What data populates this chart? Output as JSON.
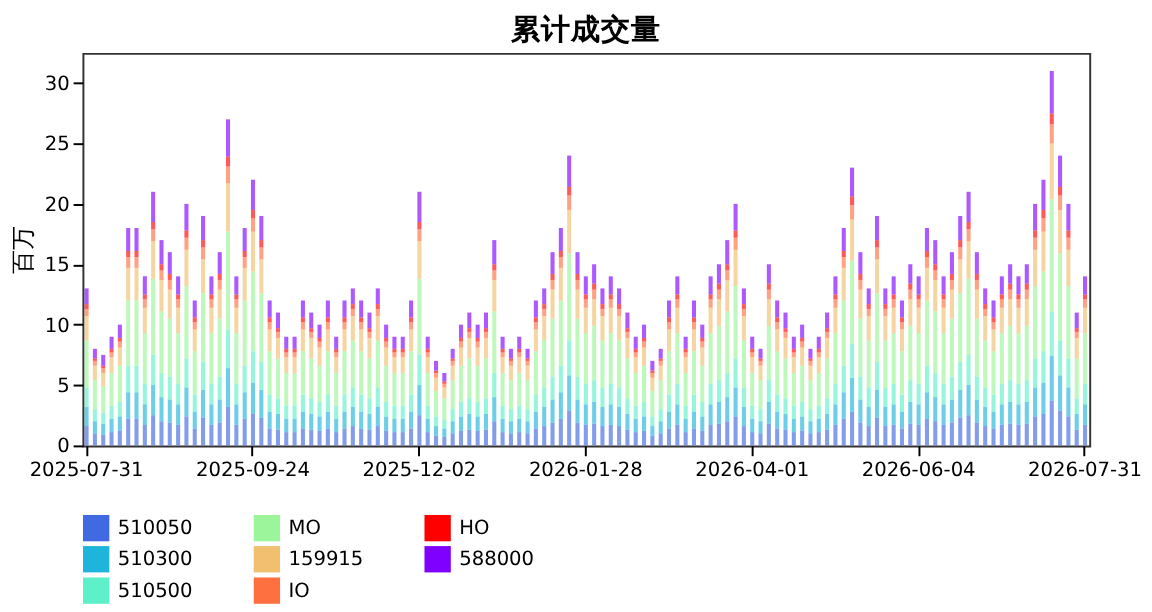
{
  "chart_data": {
    "type": "bar",
    "stacked": true,
    "title": "累计成交量",
    "ylabel": "百万",
    "categories": [
      "2025-07-31",
      null,
      null,
      null,
      null,
      null,
      null,
      null,
      null,
      null,
      null,
      null,
      null,
      null,
      null,
      null,
      null,
      null,
      null,
      null,
      "2025-09-24",
      null,
      null,
      null,
      null,
      null,
      null,
      null,
      null,
      null,
      null,
      null,
      null,
      null,
      null,
      null,
      null,
      null,
      null,
      null,
      "2025-12-02",
      null,
      null,
      null,
      null,
      null,
      null,
      null,
      null,
      null,
      null,
      null,
      null,
      null,
      null,
      null,
      null,
      null,
      null,
      null,
      "2026-01-28",
      null,
      null,
      null,
      null,
      null,
      null,
      null,
      null,
      null,
      null,
      null,
      null,
      null,
      null,
      null,
      null,
      null,
      null,
      null,
      "2026-04-01",
      null,
      null,
      null,
      null,
      null,
      null,
      null,
      null,
      null,
      null,
      null,
      null,
      null,
      null,
      null,
      null,
      null,
      null,
      null,
      "2026-06-04",
      null,
      null,
      null,
      null,
      null,
      null,
      null,
      null,
      null,
      null,
      null,
      null,
      null,
      null,
      null,
      null,
      null,
      null,
      null,
      "2026-07-31"
    ],
    "ylim": [
      0,
      32.5
    ],
    "yticks": [
      0,
      5,
      10,
      15,
      20,
      25,
      30
    ],
    "grid": false,
    "legend": "bottom",
    "series": [
      {
        "name": "510050",
        "color": "#4169e1",
        "values": [
          1.6,
          1.0,
          0.9,
          1.1,
          1.2,
          2.2,
          2.2,
          1.7,
          2.5,
          2.0,
          1.9,
          1.7,
          2.4,
          1.4,
          2.3,
          1.7,
          1.9,
          3.2,
          1.7,
          2.2,
          2.6,
          2.3,
          1.4,
          1.3,
          1.1,
          1.1,
          1.4,
          1.3,
          1.2,
          1.4,
          1.1,
          1.4,
          1.6,
          1.4,
          1.3,
          1.6,
          1.2,
          1.1,
          1.1,
          1.4,
          2.5,
          1.1,
          0.8,
          0.7,
          1.0,
          1.2,
          1.3,
          1.2,
          1.3,
          2.0,
          1.1,
          1.0,
          1.1,
          1.0,
          1.4,
          1.6,
          1.9,
          2.2,
          2.9,
          1.9,
          1.7,
          1.8,
          1.6,
          1.7,
          1.6,
          1.3,
          1.1,
          1.2,
          0.8,
          1.0,
          1.4,
          1.7,
          1.1,
          1.4,
          1.2,
          1.7,
          1.8,
          2.0,
          2.4,
          1.6,
          1.1,
          1.0,
          1.8,
          1.4,
          1.3,
          1.1,
          1.2,
          1.0,
          1.1,
          1.3,
          1.7,
          2.2,
          2.8,
          1.9,
          1.6,
          2.3,
          1.6,
          1.7,
          1.4,
          1.8,
          1.7,
          2.2,
          2.0,
          1.7,
          1.9,
          2.3,
          2.5,
          1.9,
          1.6,
          1.4,
          1.7,
          1.8,
          1.7,
          1.8,
          2.4,
          2.6,
          3.7,
          2.9,
          2.4,
          1.3,
          1.7
        ]
      },
      {
        "name": "510300",
        "color": "#1fb4dc",
        "values": [
          1.6,
          1.0,
          0.9,
          1.1,
          1.2,
          2.2,
          2.2,
          1.7,
          2.5,
          2.0,
          1.9,
          1.7,
          2.4,
          1.4,
          2.3,
          1.7,
          1.9,
          3.2,
          1.7,
          2.2,
          2.6,
          2.3,
          1.4,
          1.3,
          1.1,
          1.1,
          1.4,
          1.3,
          1.2,
          1.4,
          1.1,
          1.4,
          1.6,
          1.4,
          1.3,
          1.6,
          1.2,
          1.1,
          1.1,
          1.4,
          2.5,
          1.1,
          0.8,
          0.7,
          1.0,
          1.2,
          1.3,
          1.2,
          1.3,
          2.0,
          1.1,
          1.0,
          1.1,
          1.0,
          1.4,
          1.6,
          1.9,
          2.2,
          2.9,
          1.9,
          1.7,
          1.8,
          1.6,
          1.7,
          1.6,
          1.3,
          1.1,
          1.2,
          0.8,
          1.0,
          1.4,
          1.7,
          1.1,
          1.4,
          1.2,
          1.7,
          1.8,
          2.0,
          2.4,
          1.6,
          1.1,
          1.0,
          1.8,
          1.4,
          1.3,
          1.1,
          1.2,
          1.0,
          1.1,
          1.3,
          1.7,
          2.2,
          2.8,
          1.9,
          1.6,
          2.3,
          1.6,
          1.7,
          1.4,
          1.8,
          1.7,
          2.2,
          2.0,
          1.7,
          1.9,
          2.3,
          2.5,
          1.9,
          1.6,
          1.4,
          1.7,
          1.8,
          1.7,
          1.8,
          2.4,
          2.6,
          3.7,
          2.9,
          2.4,
          1.3,
          1.7
        ]
      },
      {
        "name": "510500",
        "color": "#5ef0c8",
        "values": [
          1.6,
          1.0,
          0.9,
          1.1,
          1.2,
          2.2,
          2.2,
          1.7,
          2.5,
          2.0,
          1.9,
          1.7,
          2.4,
          1.4,
          2.3,
          1.7,
          1.9,
          3.2,
          1.7,
          2.2,
          2.6,
          2.3,
          1.4,
          1.3,
          1.1,
          1.1,
          1.4,
          1.3,
          1.2,
          1.4,
          1.1,
          1.4,
          1.6,
          1.4,
          1.3,
          1.6,
          1.2,
          1.1,
          1.1,
          1.4,
          2.5,
          1.1,
          0.8,
          0.7,
          1.0,
          1.2,
          1.3,
          1.2,
          1.3,
          2.0,
          1.1,
          1.0,
          1.1,
          1.0,
          1.4,
          1.6,
          1.9,
          2.2,
          2.9,
          1.9,
          1.7,
          1.8,
          1.6,
          1.7,
          1.6,
          1.3,
          1.1,
          1.2,
          0.8,
          1.0,
          1.4,
          1.7,
          1.1,
          1.4,
          1.2,
          1.7,
          1.8,
          2.0,
          2.4,
          1.6,
          1.1,
          1.0,
          1.8,
          1.4,
          1.3,
          1.1,
          1.2,
          1.0,
          1.1,
          1.3,
          1.7,
          2.2,
          2.8,
          1.9,
          1.6,
          2.3,
          1.6,
          1.7,
          1.4,
          1.8,
          1.7,
          2.2,
          2.0,
          1.7,
          1.9,
          2.3,
          2.5,
          1.9,
          1.6,
          1.4,
          1.7,
          1.8,
          1.7,
          1.8,
          2.4,
          2.6,
          3.7,
          2.9,
          2.4,
          1.3,
          1.7
        ]
      },
      {
        "name": "MO",
        "color": "#9cf59a",
        "values": [
          3.9,
          2.4,
          2.2,
          2.7,
          3.0,
          5.4,
          5.4,
          4.2,
          6.3,
          5.1,
          4.8,
          4.2,
          6.0,
          3.6,
          5.7,
          4.2,
          4.8,
          8.1,
          4.2,
          5.4,
          6.6,
          5.7,
          3.6,
          3.3,
          2.7,
          2.7,
          3.6,
          3.3,
          3.0,
          3.6,
          2.7,
          3.6,
          3.9,
          3.6,
          3.3,
          3.9,
          3.0,
          2.7,
          2.7,
          3.6,
          6.3,
          2.7,
          2.1,
          1.8,
          2.4,
          3.0,
          3.3,
          3.0,
          3.3,
          5.1,
          2.7,
          2.4,
          2.7,
          2.4,
          3.6,
          3.9,
          4.8,
          5.4,
          7.2,
          4.8,
          4.2,
          4.5,
          3.9,
          4.2,
          3.9,
          3.3,
          2.7,
          3.0,
          2.1,
          2.4,
          3.6,
          4.2,
          2.7,
          3.6,
          3.0,
          4.2,
          4.5,
          5.1,
          6.0,
          3.9,
          2.7,
          2.4,
          4.5,
          3.6,
          3.3,
          2.7,
          3.0,
          2.4,
          2.7,
          3.3,
          4.2,
          5.4,
          6.9,
          4.8,
          3.9,
          5.7,
          3.9,
          4.2,
          3.6,
          4.5,
          4.2,
          5.4,
          5.1,
          4.2,
          4.8,
          5.7,
          6.3,
          4.8,
          3.9,
          3.6,
          4.2,
          4.5,
          4.2,
          4.5,
          6.0,
          6.6,
          9.3,
          7.2,
          6.0,
          3.3,
          4.2
        ]
      },
      {
        "name": "159915",
        "color": "#f0c070",
        "values": [
          2.0,
          1.2,
          1.1,
          1.3,
          1.5,
          2.7,
          2.7,
          2.1,
          3.1,
          2.6,
          2.4,
          2.1,
          3.0,
          1.8,
          2.8,
          2.1,
          2.4,
          4.0,
          2.1,
          2.7,
          3.3,
          2.8,
          1.8,
          1.7,
          1.3,
          1.3,
          1.8,
          1.7,
          1.5,
          1.8,
          1.3,
          1.8,
          2.0,
          1.8,
          1.7,
          2.0,
          1.5,
          1.3,
          1.3,
          1.8,
          3.1,
          1.3,
          1.1,
          0.9,
          1.2,
          1.5,
          1.7,
          1.5,
          1.7,
          2.6,
          1.3,
          1.2,
          1.3,
          1.2,
          1.8,
          2.0,
          2.4,
          2.7,
          3.6,
          2.4,
          2.1,
          2.2,
          2.0,
          2.1,
          2.0,
          1.7,
          1.3,
          1.5,
          1.1,
          1.2,
          1.8,
          2.1,
          1.3,
          1.8,
          1.5,
          2.1,
          2.2,
          2.6,
          3.0,
          2.0,
          1.3,
          1.2,
          2.2,
          1.8,
          1.7,
          1.3,
          1.5,
          1.2,
          1.3,
          1.7,
          2.1,
          2.7,
          3.4,
          2.4,
          2.0,
          2.8,
          2.0,
          2.1,
          1.8,
          2.2,
          2.1,
          2.7,
          2.6,
          2.1,
          2.4,
          2.8,
          3.1,
          2.4,
          2.0,
          1.8,
          2.1,
          2.2,
          2.1,
          2.2,
          3.0,
          3.3,
          4.6,
          3.6,
          3.0,
          1.7,
          2.1
        ]
      },
      {
        "name": "IO",
        "color": "#ff7040",
        "values": [
          0.6,
          0.4,
          0.4,
          0.4,
          0.5,
          0.9,
          0.9,
          0.7,
          1.0,
          0.8,
          0.8,
          0.7,
          1.0,
          0.6,
          1.0,
          0.7,
          0.8,
          1.4,
          0.7,
          0.9,
          1.1,
          1.0,
          0.6,
          0.5,
          0.4,
          0.4,
          0.6,
          0.5,
          0.5,
          0.6,
          0.4,
          0.6,
          0.6,
          0.6,
          0.5,
          0.6,
          0.5,
          0.4,
          0.4,
          0.6,
          1.0,
          0.4,
          0.4,
          0.3,
          0.4,
          0.5,
          0.5,
          0.5,
          0.5,
          0.8,
          0.4,
          0.4,
          0.4,
          0.4,
          0.6,
          0.6,
          0.8,
          0.9,
          1.2,
          0.8,
          0.7,
          0.8,
          0.6,
          0.7,
          0.6,
          0.5,
          0.4,
          0.5,
          0.4,
          0.4,
          0.6,
          0.7,
          0.4,
          0.6,
          0.5,
          0.7,
          0.8,
          0.8,
          1.0,
          0.6,
          0.4,
          0.4,
          0.8,
          0.6,
          0.5,
          0.4,
          0.5,
          0.4,
          0.4,
          0.5,
          0.7,
          0.9,
          1.2,
          0.8,
          0.6,
          1.0,
          0.6,
          0.7,
          0.6,
          0.8,
          0.7,
          0.9,
          0.8,
          0.7,
          0.8,
          1.0,
          1.0,
          0.8,
          0.6,
          0.6,
          0.7,
          0.8,
          0.7,
          0.8,
          1.0,
          1.1,
          1.6,
          1.2,
          1.0,
          0.5,
          0.7
        ]
      },
      {
        "name": "HO",
        "color": "#ff0000",
        "values": [
          0.4,
          0.2,
          0.2,
          0.3,
          0.3,
          0.5,
          0.5,
          0.4,
          0.6,
          0.5,
          0.5,
          0.4,
          0.6,
          0.4,
          0.6,
          0.4,
          0.5,
          0.8,
          0.4,
          0.5,
          0.7,
          0.6,
          0.4,
          0.3,
          0.3,
          0.3,
          0.4,
          0.3,
          0.3,
          0.4,
          0.3,
          0.4,
          0.4,
          0.4,
          0.3,
          0.4,
          0.3,
          0.3,
          0.3,
          0.4,
          0.6,
          0.3,
          0.2,
          0.2,
          0.2,
          0.3,
          0.3,
          0.3,
          0.3,
          0.5,
          0.3,
          0.2,
          0.3,
          0.2,
          0.4,
          0.4,
          0.5,
          0.5,
          0.7,
          0.5,
          0.4,
          0.5,
          0.4,
          0.4,
          0.4,
          0.3,
          0.3,
          0.3,
          0.2,
          0.2,
          0.4,
          0.4,
          0.3,
          0.4,
          0.3,
          0.4,
          0.5,
          0.5,
          0.6,
          0.4,
          0.3,
          0.2,
          0.5,
          0.4,
          0.3,
          0.3,
          0.3,
          0.2,
          0.3,
          0.3,
          0.4,
          0.5,
          0.7,
          0.5,
          0.4,
          0.6,
          0.4,
          0.4,
          0.4,
          0.5,
          0.4,
          0.5,
          0.5,
          0.4,
          0.5,
          0.6,
          0.6,
          0.5,
          0.4,
          0.4,
          0.4,
          0.5,
          0.4,
          0.5,
          0.6,
          0.7,
          0.9,
          0.7,
          0.6,
          0.3,
          0.4
        ]
      },
      {
        "name": "588000",
        "color": "#8000ff",
        "values": [
          1.3,
          0.8,
          0.9,
          1.0,
          1.1,
          1.9,
          1.9,
          1.5,
          2.5,
          2.0,
          1.8,
          1.5,
          2.2,
          1.4,
          2.0,
          1.5,
          1.8,
          3.1,
          1.5,
          1.9,
          2.5,
          2.0,
          1.4,
          1.3,
          1.0,
          1.0,
          1.4,
          1.3,
          1.1,
          1.4,
          1.0,
          1.4,
          1.3,
          1.4,
          1.3,
          1.3,
          1.1,
          1.0,
          1.0,
          1.4,
          2.5,
          1.0,
          0.8,
          0.7,
          0.8,
          1.1,
          1.3,
          1.1,
          1.3,
          2.0,
          1.0,
          0.8,
          1.0,
          0.8,
          1.4,
          1.3,
          1.8,
          1.9,
          2.6,
          1.8,
          1.5,
          1.6,
          1.3,
          1.5,
          1.3,
          1.3,
          1.0,
          1.1,
          0.8,
          0.8,
          1.4,
          1.5,
          1.0,
          1.4,
          1.1,
          1.5,
          1.6,
          2.0,
          2.2,
          1.3,
          1.0,
          0.8,
          1.6,
          1.4,
          1.3,
          1.0,
          1.1,
          0.8,
          1.0,
          1.3,
          1.5,
          1.9,
          2.4,
          1.8,
          1.3,
          2.0,
          1.3,
          1.5,
          1.4,
          1.6,
          1.5,
          1.9,
          2.0,
          1.5,
          1.8,
          2.0,
          2.5,
          1.8,
          1.3,
          1.4,
          1.5,
          1.6,
          1.5,
          1.6,
          2.2,
          2.5,
          3.5,
          2.6,
          2.2,
          1.3,
          1.5
        ]
      }
    ]
  }
}
